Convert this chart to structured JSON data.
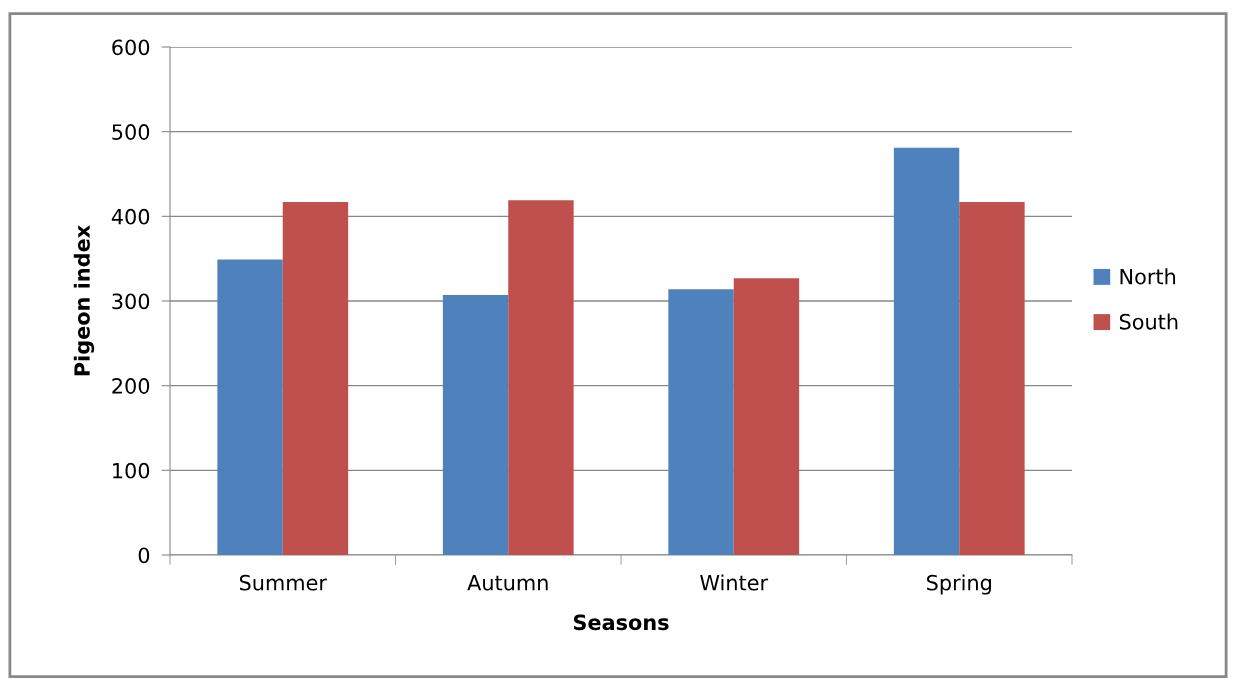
{
  "chart_data": {
    "type": "bar",
    "xlabel": "Seasons",
    "ylabel": "Pigeon index",
    "categories": [
      "Summer",
      "Autumn",
      "Winter",
      "Spring"
    ],
    "series": [
      {
        "name": "North",
        "color": "#4f81bd",
        "values": [
          349,
          307,
          314,
          481
        ]
      },
      {
        "name": "South",
        "color": "#c0504d",
        "values": [
          417,
          419,
          327,
          417
        ]
      }
    ],
    "ylim": [
      0,
      600
    ],
    "yticks": [
      0,
      100,
      200,
      300,
      400,
      500,
      600
    ],
    "grid": "y",
    "legend": "right"
  }
}
